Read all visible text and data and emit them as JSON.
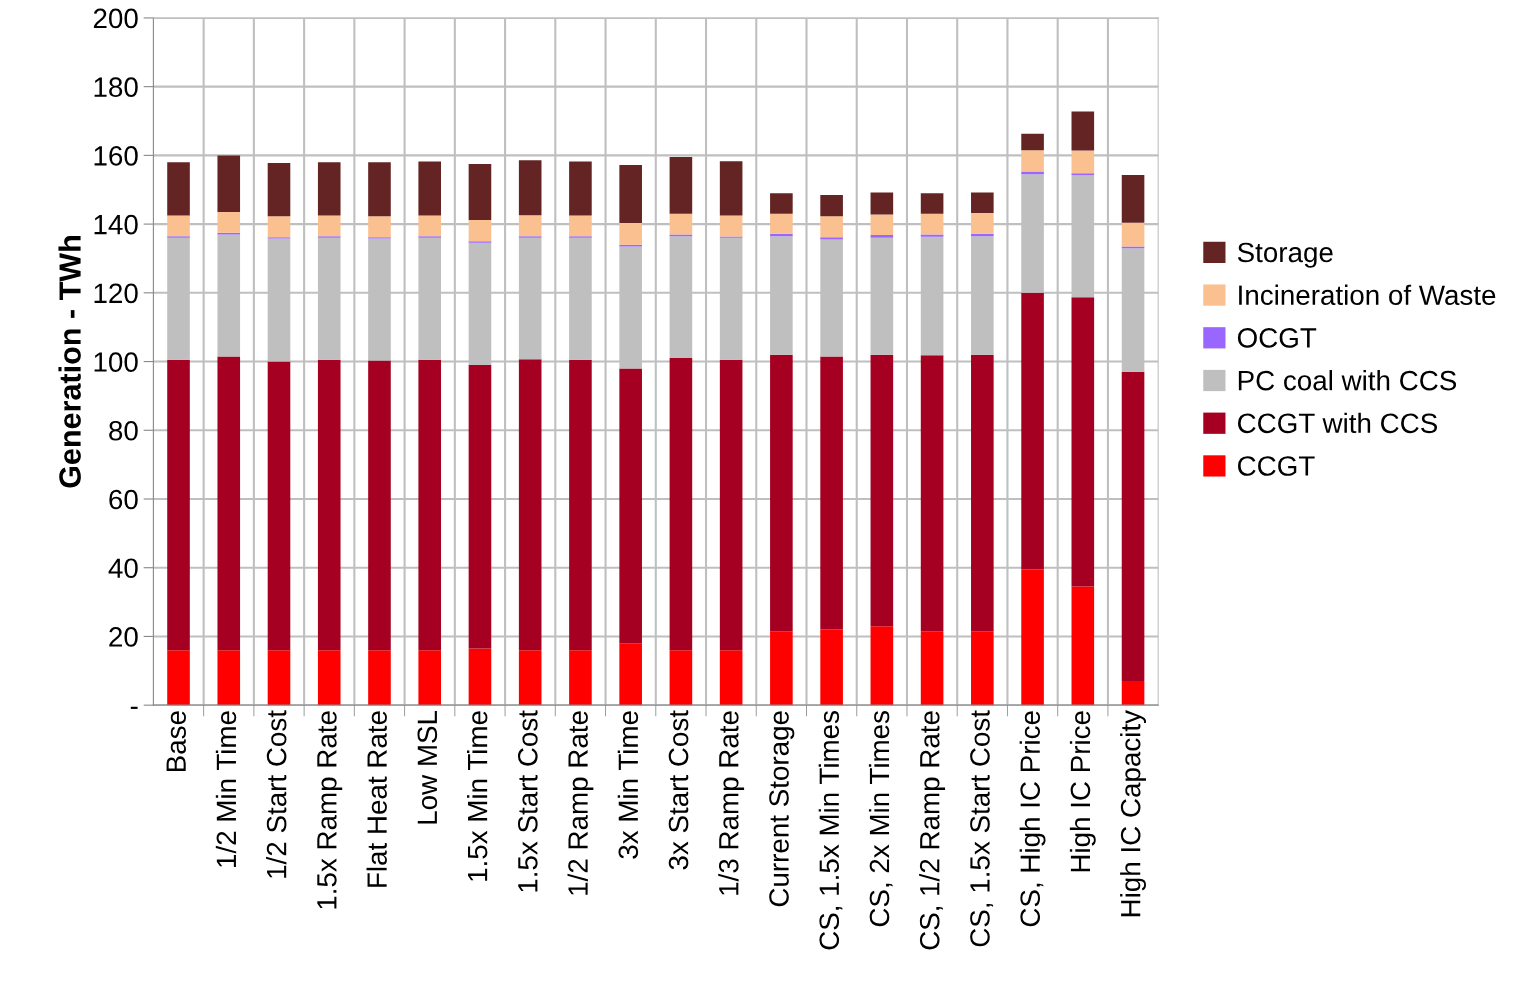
{
  "chart_data": {
    "type": "bar",
    "stacked": true,
    "ylabel": "Generation - TWh",
    "categories": [
      "Base",
      "1/2 Min Time",
      "1/2 Start Cost",
      "1.5x Ramp Rate",
      "Flat Heat Rate",
      "Low MSL",
      "1.5x Min Time",
      "1.5x Start Cost",
      "1/2 Ramp Rate",
      "3x Min Time",
      "3x Start Cost",
      "1/3 Ramp Rate",
      "Current Storage",
      "CS, 1.5x Min Times",
      "CS, 2x Min Times",
      "CS, 1/2 Ramp Rate",
      "CS, 1.5x Start Cost",
      "CS, High IC Price",
      "High IC Price",
      "High IC Capacity"
    ],
    "series": [
      {
        "name": "CCGT",
        "color": "#ff0000",
        "values": [
          16,
          16,
          16,
          16,
          16,
          16,
          16.5,
          16,
          16,
          18,
          16,
          16,
          21.5,
          22,
          23,
          21.5,
          21.5,
          39.5,
          34.5,
          7
        ]
      },
      {
        "name": "CCGT with CCS",
        "color": "#a50021",
        "values": [
          84.5,
          85.5,
          84,
          84.5,
          84.3,
          84.5,
          82.5,
          84.7,
          84.5,
          80,
          85,
          84.5,
          80.5,
          79.5,
          79,
          80.3,
          80.5,
          80.5,
          84.2,
          90
        ]
      },
      {
        "name": "PC coal with CCS",
        "color": "#bfbfbf",
        "values": [
          35.5,
          35.5,
          35.8,
          35.5,
          35.5,
          35.5,
          35.6,
          35.3,
          35.5,
          35.5,
          35.5,
          35.5,
          34.5,
          34,
          34,
          34.5,
          34.5,
          34.5,
          35.5,
          36
        ]
      },
      {
        "name": "OCGT",
        "color": "#9966ff",
        "values": [
          0.5,
          0.5,
          0.4,
          0.5,
          0.4,
          0.5,
          0.4,
          0.5,
          0.5,
          0.5,
          0.5,
          0.4,
          0.7,
          0.7,
          0.8,
          0.7,
          0.7,
          0.8,
          0.6,
          0.5
        ]
      },
      {
        "name": "Incineration of Waste",
        "color": "#fac090",
        "values": [
          6,
          6,
          6.1,
          6,
          6.1,
          6,
          6.2,
          6.1,
          6,
          6.3,
          6,
          6.1,
          5.8,
          6.1,
          6,
          6,
          6,
          6.2,
          6.6,
          6.9
        ]
      },
      {
        "name": "Storage",
        "color": "#632423",
        "values": [
          15.5,
          16.5,
          15.5,
          15.5,
          15.7,
          15.7,
          16.3,
          16,
          15.7,
          16.9,
          16.5,
          15.8,
          6,
          6.2,
          6.4,
          6,
          6,
          4.8,
          11.4,
          13.9
        ]
      }
    ],
    "ylim": [
      0,
      200
    ],
    "yticks": [
      {
        "value": 0,
        "label": "-"
      },
      20,
      40,
      60,
      80,
      100,
      120,
      140,
      160,
      180,
      200
    ],
    "grid": true,
    "legend": "right"
  }
}
